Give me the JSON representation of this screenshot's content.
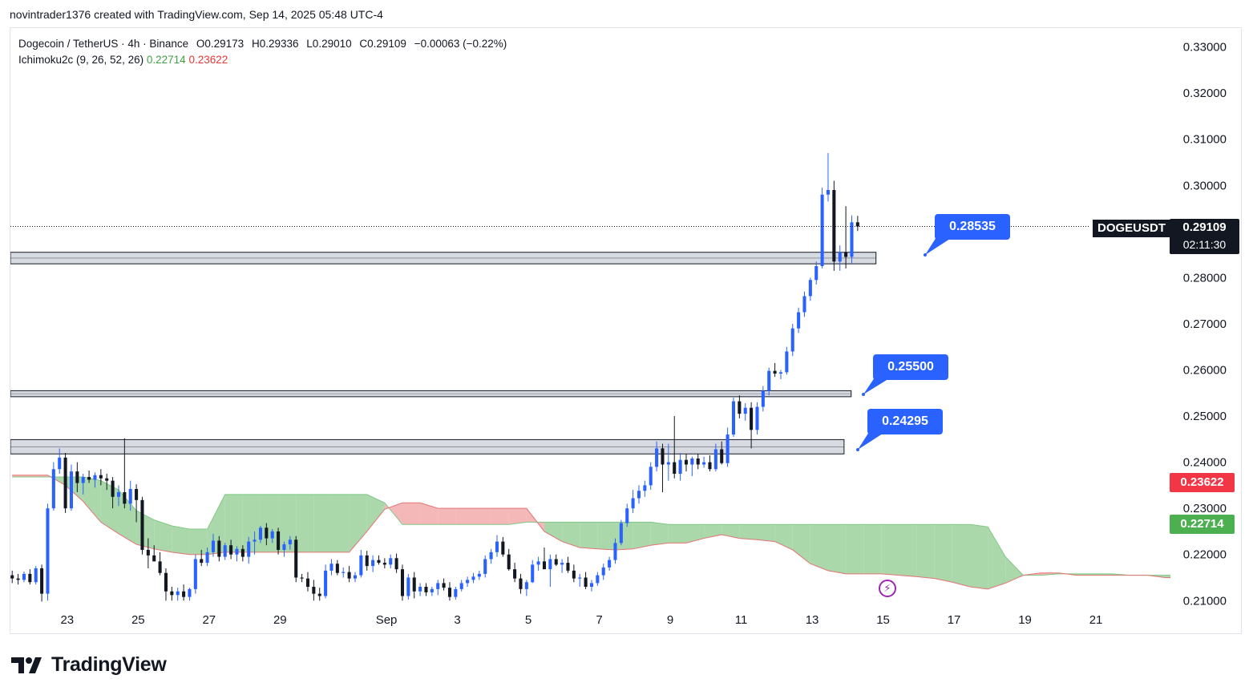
{
  "header": {
    "attribution": "novintrader1376 created with TradingView.com, Sep 14, 2025 05:48 UTC-4"
  },
  "legend": {
    "symbol_line": "Dogecoin / TetherUS · 4h · Binance",
    "open": "O0.29173",
    "high": "H0.29336",
    "low": "L0.29010",
    "close": "C0.29109",
    "change": "−0.00063 (−0.22%)",
    "indicator_name": "Ichimoku2c (9, 26, 52, 26)",
    "indicator_value_1": "0.22714",
    "indicator_value_2": "0.23622"
  },
  "price_tag": {
    "symbol": "DOGEUSDT",
    "price": "0.29109",
    "countdown": "02:11:30"
  },
  "scale_badges": {
    "span_b": "0.23622",
    "span_a": "0.22714"
  },
  "callouts": [
    {
      "label": "0.28535"
    },
    {
      "label": "0.25500"
    },
    {
      "label": "0.24295"
    }
  ],
  "footer": {
    "brand": "TradingView"
  },
  "colors": {
    "bull": "#2962ff",
    "bear": "#131722",
    "cloud_green": "#a5d6a7",
    "cloud_red": "#ef9a9a",
    "callout": "#2962ff",
    "span_b_badge": "#f23645",
    "span_a_badge": "#4caf50"
  },
  "chart_data": {
    "type": "candlestick",
    "symbol": "Dogecoin / TetherUS",
    "interval": "4h",
    "exchange": "Binance",
    "y_axis": {
      "ticks": [
        "0.33000",
        "0.32000",
        "0.31000",
        "0.30000",
        "0.28000",
        "0.27000",
        "0.26000",
        "0.25000",
        "0.24000",
        "0.23000",
        "0.22000",
        "0.21000"
      ],
      "ylim": [
        0.2097,
        0.3341
      ]
    },
    "x_axis": {
      "ticks": [
        {
          "label": "23",
          "day": 23
        },
        {
          "label": "25",
          "day": 25
        },
        {
          "label": "27",
          "day": 27
        },
        {
          "label": "29",
          "day": 29
        },
        {
          "label": "Sep",
          "day": 32
        },
        {
          "label": "3",
          "day": 34
        },
        {
          "label": "5",
          "day": 36
        },
        {
          "label": "7",
          "day": 38
        },
        {
          "label": "9",
          "day": 40
        },
        {
          "label": "11",
          "day": 42
        },
        {
          "label": "13",
          "day": 44
        },
        {
          "label": "15",
          "day": 46
        },
        {
          "label": "17",
          "day": 48
        },
        {
          "label": "19",
          "day": 50
        },
        {
          "label": "21",
          "day": 52
        }
      ],
      "xlim": [
        21.4,
        54.1
      ]
    },
    "zones": [
      {
        "low": 0.283,
        "high": 0.2855,
        "from_day": 21.4,
        "to_day": 45.8
      },
      {
        "low": 0.2542,
        "high": 0.2555,
        "from_day": 21.4,
        "to_day": 45.1
      },
      {
        "low": 0.2418,
        "high": 0.2449,
        "from_day": 21.4,
        "to_day": 44.9
      }
    ],
    "callout_levels": [
      0.28535,
      0.255,
      0.24295
    ],
    "last_price": 0.29109,
    "candles_start_day": 21.45,
    "candles_per_day": 6,
    "candles": [
      [
        0.2155,
        0.2165,
        0.2138,
        0.2148
      ],
      [
        0.2148,
        0.2158,
        0.2135,
        0.2145
      ],
      [
        0.2145,
        0.2163,
        0.214,
        0.2158
      ],
      [
        0.2158,
        0.2168,
        0.2135,
        0.214
      ],
      [
        0.214,
        0.2175,
        0.2135,
        0.217
      ],
      [
        0.217,
        0.2178,
        0.2098,
        0.2115
      ],
      [
        0.2115,
        0.231,
        0.21,
        0.23
      ],
      [
        0.23,
        0.24,
        0.2295,
        0.2385
      ],
      [
        0.2385,
        0.243,
        0.2375,
        0.241
      ],
      [
        0.241,
        0.242,
        0.229,
        0.23
      ],
      [
        0.23,
        0.2395,
        0.2295,
        0.238
      ],
      [
        0.238,
        0.24,
        0.2335,
        0.2355
      ],
      [
        0.2355,
        0.2375,
        0.233,
        0.2368
      ],
      [
        0.2368,
        0.2382,
        0.2355,
        0.2362
      ],
      [
        0.2362,
        0.2378,
        0.2345,
        0.2372
      ],
      [
        0.2372,
        0.2385,
        0.235,
        0.2365
      ],
      [
        0.2365,
        0.2375,
        0.234,
        0.236
      ],
      [
        0.236,
        0.2368,
        0.23,
        0.2325
      ],
      [
        0.2325,
        0.235,
        0.2305,
        0.2335
      ],
      [
        0.2335,
        0.2452,
        0.23,
        0.231
      ],
      [
        0.231,
        0.236,
        0.2295,
        0.2342
      ],
      [
        0.2342,
        0.2352,
        0.227,
        0.2318
      ],
      [
        0.2318,
        0.2325,
        0.22,
        0.221
      ],
      [
        0.221,
        0.2235,
        0.217,
        0.2198
      ],
      [
        0.2198,
        0.222,
        0.2185,
        0.2185
      ],
      [
        0.2185,
        0.2205,
        0.2155,
        0.216
      ],
      [
        0.216,
        0.217,
        0.21,
        0.212
      ],
      [
        0.212,
        0.213,
        0.21,
        0.2112
      ],
      [
        0.2112,
        0.2128,
        0.21,
        0.212
      ],
      [
        0.212,
        0.2135,
        0.21,
        0.2108
      ],
      [
        0.2108,
        0.2128,
        0.21,
        0.2125
      ],
      [
        0.2125,
        0.22,
        0.2115,
        0.219
      ],
      [
        0.219,
        0.221,
        0.2175,
        0.2182
      ],
      [
        0.2182,
        0.2215,
        0.2175,
        0.2205
      ],
      [
        0.2205,
        0.2245,
        0.2195,
        0.223
      ],
      [
        0.223,
        0.224,
        0.2185,
        0.2195
      ],
      [
        0.2195,
        0.2225,
        0.2188,
        0.222
      ],
      [
        0.222,
        0.2232,
        0.219,
        0.22
      ],
      [
        0.22,
        0.2218,
        0.2185,
        0.2212
      ],
      [
        0.2212,
        0.222,
        0.2185,
        0.2195
      ],
      [
        0.2195,
        0.2238,
        0.218,
        0.2228
      ],
      [
        0.2228,
        0.225,
        0.22,
        0.2232
      ],
      [
        0.2232,
        0.2262,
        0.2225,
        0.2258
      ],
      [
        0.2258,
        0.2268,
        0.222,
        0.2235
      ],
      [
        0.2235,
        0.2255,
        0.2225,
        0.225
      ],
      [
        0.225,
        0.2258,
        0.22,
        0.221
      ],
      [
        0.221,
        0.2228,
        0.2195,
        0.2222
      ],
      [
        0.2222,
        0.224,
        0.221,
        0.2232
      ],
      [
        0.2232,
        0.224,
        0.214,
        0.215
      ],
      [
        0.215,
        0.2158,
        0.214,
        0.2148
      ],
      [
        0.2148,
        0.2162,
        0.212,
        0.213
      ],
      [
        0.213,
        0.2145,
        0.21,
        0.2115
      ],
      [
        0.2115,
        0.2128,
        0.21,
        0.211
      ],
      [
        0.211,
        0.2178,
        0.2105,
        0.2165
      ],
      [
        0.2165,
        0.219,
        0.2155,
        0.218
      ],
      [
        0.218,
        0.2188,
        0.2155,
        0.216
      ],
      [
        0.216,
        0.2172,
        0.215,
        0.2162
      ],
      [
        0.2162,
        0.2175,
        0.214,
        0.2148
      ],
      [
        0.2148,
        0.2162,
        0.214,
        0.2155
      ],
      [
        0.2155,
        0.221,
        0.215,
        0.2198
      ],
      [
        0.2198,
        0.2208,
        0.2165,
        0.2175
      ],
      [
        0.2175,
        0.2198,
        0.2162,
        0.2188
      ],
      [
        0.2188,
        0.2198,
        0.2178,
        0.2182
      ],
      [
        0.2182,
        0.2192,
        0.217,
        0.2178
      ],
      [
        0.2178,
        0.22,
        0.217,
        0.2192
      ],
      [
        0.2192,
        0.2202,
        0.216,
        0.2168
      ],
      [
        0.2168,
        0.2178,
        0.21,
        0.211
      ],
      [
        0.211,
        0.2158,
        0.2102,
        0.215
      ],
      [
        0.215,
        0.2162,
        0.2105,
        0.212
      ],
      [
        0.212,
        0.2138,
        0.211,
        0.213
      ],
      [
        0.213,
        0.2138,
        0.211,
        0.2118
      ],
      [
        0.2118,
        0.213,
        0.211,
        0.2125
      ],
      [
        0.2125,
        0.2145,
        0.2112,
        0.2138
      ],
      [
        0.2138,
        0.2148,
        0.2122,
        0.2128
      ],
      [
        0.2128,
        0.214,
        0.21,
        0.2108
      ],
      [
        0.2108,
        0.213,
        0.2102,
        0.2125
      ],
      [
        0.2125,
        0.2145,
        0.212,
        0.2138
      ],
      [
        0.2138,
        0.2152,
        0.213,
        0.2145
      ],
      [
        0.2145,
        0.216,
        0.2138,
        0.2152
      ],
      [
        0.2152,
        0.2165,
        0.2145,
        0.2158
      ],
      [
        0.2158,
        0.2198,
        0.215,
        0.219
      ],
      [
        0.219,
        0.2212,
        0.218,
        0.2205
      ],
      [
        0.2205,
        0.2242,
        0.2195,
        0.2228
      ],
      [
        0.2228,
        0.2238,
        0.2195,
        0.22
      ],
      [
        0.22,
        0.2212,
        0.2165,
        0.2168
      ],
      [
        0.2168,
        0.2182,
        0.214,
        0.2148
      ],
      [
        0.2148,
        0.2158,
        0.2115,
        0.2125
      ],
      [
        0.2125,
        0.2145,
        0.211,
        0.214
      ],
      [
        0.214,
        0.2188,
        0.2138,
        0.2178
      ],
      [
        0.2178,
        0.2195,
        0.2165,
        0.2185
      ],
      [
        0.2185,
        0.2215,
        0.2178,
        0.2168
      ],
      [
        0.2168,
        0.22,
        0.213,
        0.219
      ],
      [
        0.219,
        0.22,
        0.2175,
        0.2178
      ],
      [
        0.2178,
        0.219,
        0.216,
        0.2182
      ],
      [
        0.2182,
        0.2195,
        0.216,
        0.2165
      ],
      [
        0.2165,
        0.2178,
        0.214,
        0.2148
      ],
      [
        0.2148,
        0.2158,
        0.213,
        0.215
      ],
      [
        0.215,
        0.2162,
        0.2125,
        0.213
      ],
      [
        0.213,
        0.2145,
        0.212,
        0.2138
      ],
      [
        0.2138,
        0.2162,
        0.2132,
        0.2155
      ],
      [
        0.2155,
        0.218,
        0.2145,
        0.2172
      ],
      [
        0.2172,
        0.2195,
        0.2165,
        0.2188
      ],
      [
        0.2188,
        0.2235,
        0.218,
        0.2225
      ],
      [
        0.2225,
        0.2275,
        0.222,
        0.2268
      ],
      [
        0.2268,
        0.231,
        0.226,
        0.23
      ],
      [
        0.23,
        0.234,
        0.229,
        0.2322
      ],
      [
        0.2322,
        0.235,
        0.231,
        0.2338
      ],
      [
        0.2338,
        0.236,
        0.2325,
        0.235
      ],
      [
        0.235,
        0.24,
        0.234,
        0.239
      ],
      [
        0.239,
        0.2445,
        0.238,
        0.243
      ],
      [
        0.243,
        0.244,
        0.2335,
        0.2395
      ],
      [
        0.2395,
        0.244,
        0.236,
        0.24
      ],
      [
        0.24,
        0.25,
        0.2365,
        0.2375
      ],
      [
        0.2375,
        0.242,
        0.236,
        0.2405
      ],
      [
        0.2405,
        0.2418,
        0.238,
        0.2395
      ],
      [
        0.2395,
        0.2412,
        0.237,
        0.2408
      ],
      [
        0.2408,
        0.2418,
        0.2385,
        0.2395
      ],
      [
        0.2395,
        0.2412,
        0.2388,
        0.24
      ],
      [
        0.24,
        0.2415,
        0.238,
        0.2385
      ],
      [
        0.2385,
        0.244,
        0.238,
        0.2428
      ],
      [
        0.2428,
        0.2445,
        0.2395,
        0.2398
      ],
      [
        0.2398,
        0.2475,
        0.239,
        0.246
      ],
      [
        0.246,
        0.254,
        0.2455,
        0.2532
      ],
      [
        0.2532,
        0.2545,
        0.2495,
        0.2505
      ],
      [
        0.2505,
        0.2528,
        0.249,
        0.2518
      ],
      [
        0.2518,
        0.253,
        0.243,
        0.247
      ],
      [
        0.247,
        0.253,
        0.246,
        0.252
      ],
      [
        0.252,
        0.2565,
        0.251,
        0.2555
      ],
      [
        0.2555,
        0.2605,
        0.2545,
        0.2598
      ],
      [
        0.2598,
        0.2615,
        0.2585,
        0.2592
      ],
      [
        0.2592,
        0.26,
        0.258,
        0.2595
      ],
      [
        0.2595,
        0.265,
        0.259,
        0.264
      ],
      [
        0.264,
        0.27,
        0.263,
        0.269
      ],
      [
        0.269,
        0.2735,
        0.268,
        0.2725
      ],
      [
        0.2725,
        0.277,
        0.2715,
        0.276
      ],
      [
        0.276,
        0.28,
        0.275,
        0.2795
      ],
      [
        0.2795,
        0.2835,
        0.2785,
        0.2825
      ],
      [
        0.2825,
        0.2995,
        0.282,
        0.298
      ],
      [
        0.298,
        0.307,
        0.2965,
        0.299
      ],
      [
        0.299,
        0.301,
        0.2815,
        0.2835
      ],
      [
        0.2835,
        0.287,
        0.2815,
        0.2855
      ],
      [
        0.2855,
        0.2955,
        0.282,
        0.2845
      ],
      [
        0.2845,
        0.2935,
        0.283,
        0.292
      ],
      [
        0.292,
        0.2934,
        0.2901,
        0.2911
      ]
    ],
    "ichimoku": {
      "name": "Ichimoku2c (9, 26, 52, 26)",
      "cloud_start_day": 21.45,
      "cloud_points_per_day": 2,
      "span_a": [
        0.2368,
        0.2368,
        0.2368,
        0.2368,
        0.2368,
        0.236,
        0.234,
        0.2295,
        0.2275,
        0.2262,
        0.2255,
        0.2255,
        0.233,
        0.233,
        0.233,
        0.233,
        0.233,
        0.233,
        0.233,
        0.233,
        0.233,
        0.2312,
        0.2265,
        0.2265,
        0.2265,
        0.2265,
        0.2265,
        0.2265,
        0.2265,
        0.227,
        0.227,
        0.227,
        0.227,
        0.227,
        0.227,
        0.227,
        0.227,
        0.2265,
        0.2265,
        0.2265,
        0.2265,
        0.2265,
        0.2265,
        0.2265,
        0.2265,
        0.2265,
        0.2265,
        0.2265,
        0.2265,
        0.2265,
        0.2265,
        0.2265,
        0.2265,
        0.2265,
        0.2265,
        0.226,
        0.2195,
        0.2155,
        0.2155,
        0.2158,
        0.2158,
        0.2158,
        0.2158,
        0.2155,
        0.2155,
        0.2155,
        0.2155,
        0.2158,
        0.2165,
        0.217,
        0.217,
        0.217,
        0.221,
        0.2225,
        0.2255,
        0.2255,
        0.227,
        0.227,
        0.227,
        0.227
      ],
      "span_b": [
        0.2372,
        0.2372,
        0.2372,
        0.235,
        0.2315,
        0.227,
        0.2245,
        0.2222,
        0.2212,
        0.2205,
        0.22,
        0.22,
        0.2205,
        0.2205,
        0.2205,
        0.2205,
        0.2205,
        0.2205,
        0.2205,
        0.2205,
        0.225,
        0.2298,
        0.2312,
        0.2312,
        0.23,
        0.23,
        0.23,
        0.23,
        0.23,
        0.23,
        0.225,
        0.2228,
        0.2215,
        0.2212,
        0.221,
        0.2212,
        0.222,
        0.2225,
        0.2225,
        0.2235,
        0.2243,
        0.2235,
        0.2232,
        0.2228,
        0.221,
        0.218,
        0.2165,
        0.2158,
        0.2158,
        0.2158,
        0.2155,
        0.2152,
        0.2148,
        0.214,
        0.213,
        0.2125,
        0.2138,
        0.2155,
        0.216,
        0.216,
        0.2155,
        0.2155,
        0.2155,
        0.2155,
        0.2155,
        0.215,
        0.215,
        0.2162,
        0.2158,
        0.216,
        0.2168,
        0.2195,
        0.2225,
        0.2245,
        0.227,
        0.2285,
        0.2308,
        0.235,
        0.236,
        0.2362
      ]
    }
  }
}
